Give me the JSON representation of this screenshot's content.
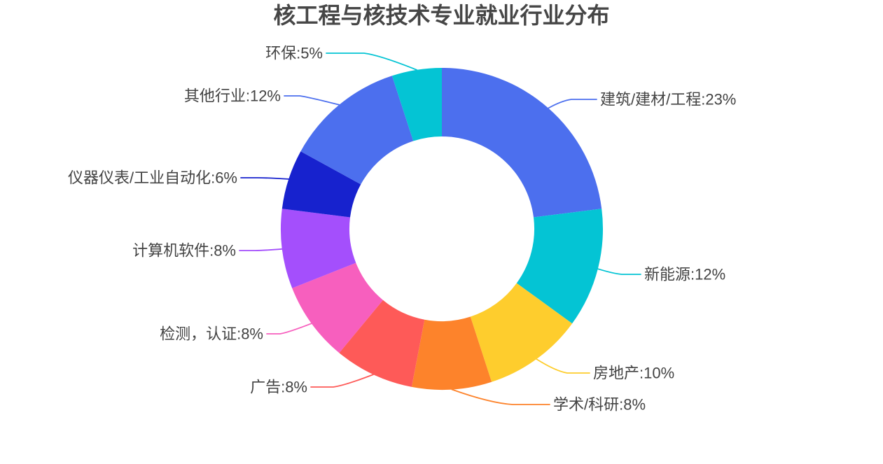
{
  "chart_data": {
    "type": "pie",
    "subtype": "donut",
    "title": "核工程与核技术专业就业行业分布",
    "title_color": "#464646",
    "label_color": "#434343",
    "background": "#ffffff",
    "legend": "none",
    "start_angle_deg_from_top": 0,
    "direction": "clockwise",
    "inner_radius_pct": 57,
    "label_format": "{name}:{value}%",
    "segments": [
      {
        "label": "建筑/建材/工程",
        "value": 23,
        "color": "#4c6fee"
      },
      {
        "label": "新能源",
        "value": 12,
        "color": "#04c4d4"
      },
      {
        "label": "房地产",
        "value": 10,
        "color": "#fecd2d"
      },
      {
        "label": "学术/科研",
        "value": 8,
        "color": "#fd832b"
      },
      {
        "label": "广告",
        "value": 8,
        "color": "#fe5a58"
      },
      {
        "label": "检测，认证",
        "value": 8,
        "color": "#f75fbe"
      },
      {
        "label": "计算机软件",
        "value": 8,
        "color": "#a44ffc"
      },
      {
        "label": "仪器仪表/工业自动化",
        "value": 6,
        "color": "#1722ce"
      },
      {
        "label": "其他行业",
        "value": 12,
        "color": "#4c6fee"
      },
      {
        "label": "环保",
        "value": 5,
        "color": "#04c4d4"
      }
    ]
  }
}
